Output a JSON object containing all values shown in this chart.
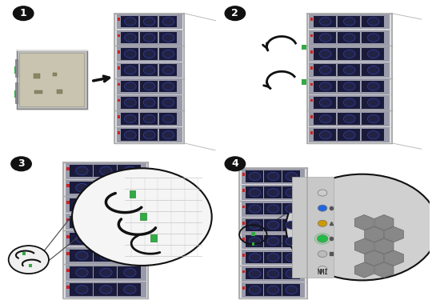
{
  "bg": "#ffffff",
  "panel_border": "#555555",
  "chassis_frame": "#c8c8c8",
  "chassis_inner": "#e0e0e0",
  "chassis_dark": "#aaaaaa",
  "slot_bg": "#cccccc",
  "blade_dark": "#1a1a3a",
  "blade_mid": "#223366",
  "fan_color": "#222244",
  "fan_ring": "#3344aa",
  "red_indicator": "#cc2222",
  "green_latch": "#33aa44",
  "arrow_color": "#111111",
  "circle_bg": "#111111",
  "circle_fg": "#ffffff",
  "led_blue": "#2266dd",
  "led_yellow": "#cc9900",
  "led_green": "#22bb44",
  "led_off": "#888888",
  "hex_fill": "#888888",
  "hex_edge": "#666666",
  "panel_fill": "#cccccc",
  "nmi_label": "NMI",
  "blade_panel_bg": "#b8b8c0",
  "grid_color": "#bbbbbb",
  "persp_color": "#bbbbbb"
}
